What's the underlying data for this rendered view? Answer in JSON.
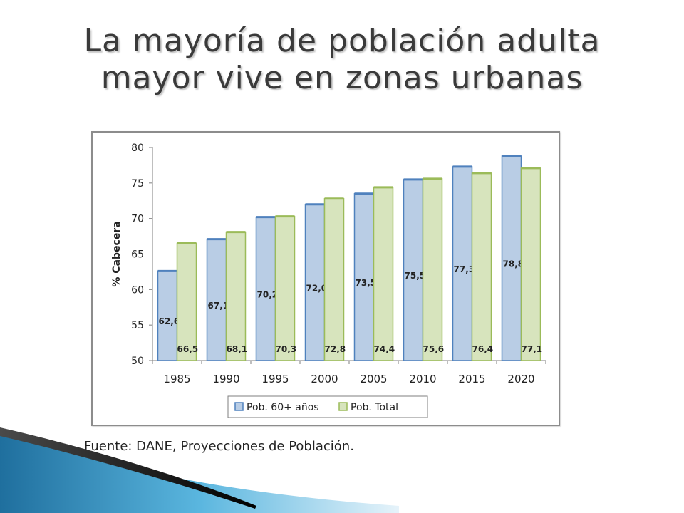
{
  "slide": {
    "title_line1": "La mayoría de población adulta",
    "title_line2": "mayor vive en zonas urbanas",
    "source": "Fuente: DANE, Proyecciones de Población."
  },
  "colors": {
    "series1_fill": "#b9cde5",
    "series1_stroke": "#4f81bd",
    "series2_fill": "#d7e4bd",
    "series2_stroke": "#9bbb59",
    "title": "#3a3a3a",
    "decor_blue": "#3b9fcf",
    "decor_dark": "#1a1a1a"
  },
  "chart_data": {
    "type": "bar",
    "ylabel": "% Cabecera",
    "ylim": [
      50,
      80
    ],
    "yticks": [
      50,
      55,
      60,
      65,
      70,
      75,
      80
    ],
    "grid": false,
    "legend_position": "bottom",
    "categories": [
      "1985",
      "1990",
      "1995",
      "2000",
      "2005",
      "2010",
      "2015",
      "2020"
    ],
    "series": [
      {
        "name": "Pob. 60+ años",
        "values": [
          62.6,
          67.1,
          70.2,
          72.0,
          73.5,
          75.5,
          77.3,
          78.8
        ],
        "labels": [
          "62,6",
          "67,1",
          "70,2",
          "72,0",
          "73,5",
          "75,5",
          "77,3",
          "78,8"
        ]
      },
      {
        "name": "Pob. Total",
        "values": [
          66.5,
          68.1,
          70.3,
          72.8,
          74.4,
          75.6,
          76.4,
          77.1
        ],
        "labels": [
          "66,5",
          "68,1",
          "70,3",
          "72,8",
          "74,4",
          "75,6",
          "76,4",
          "77,1"
        ]
      }
    ]
  }
}
